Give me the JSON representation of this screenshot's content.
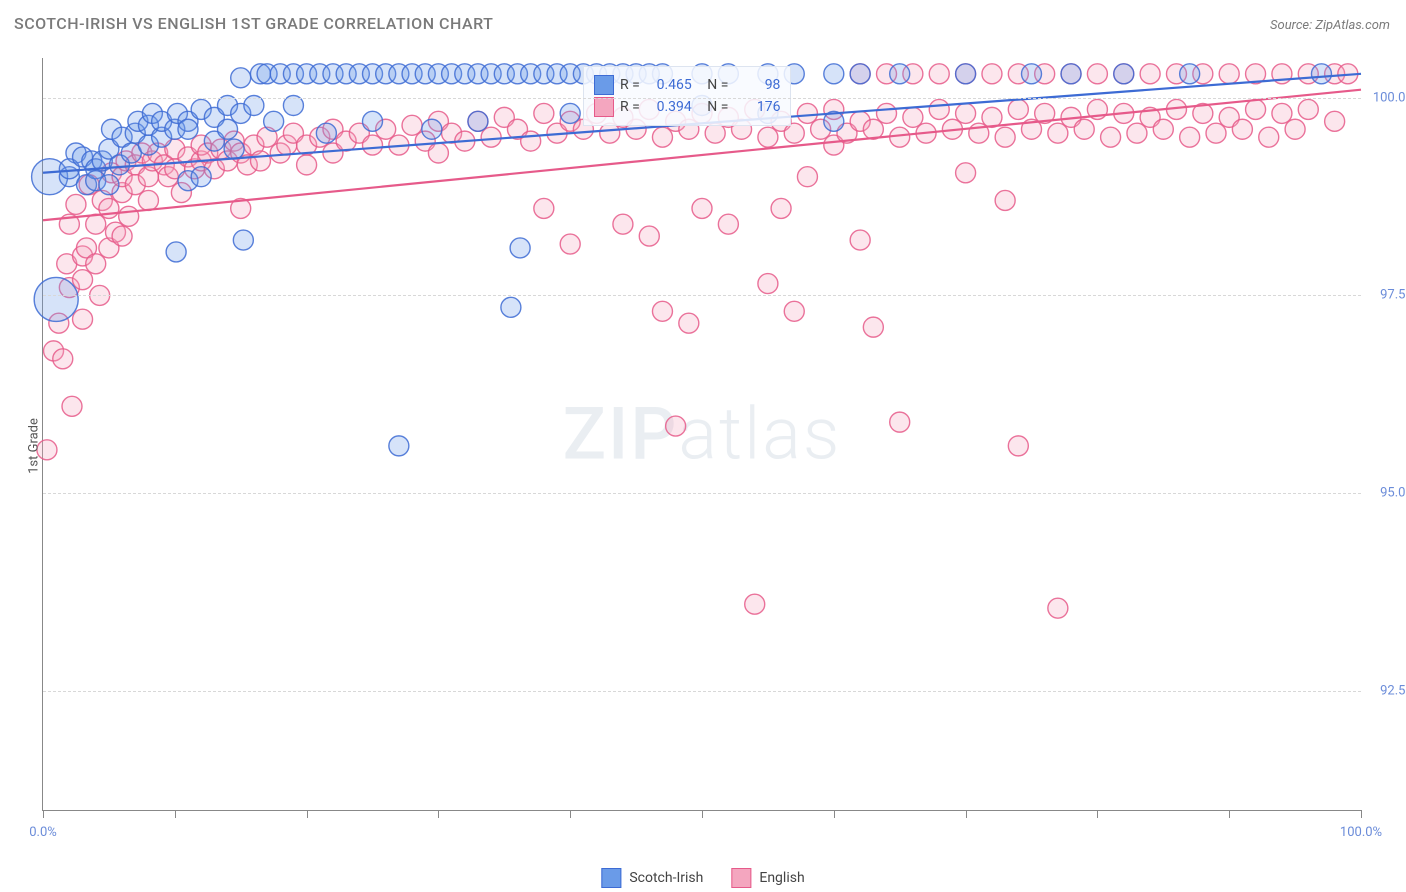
{
  "title": "SCOTCH-IRISH VS ENGLISH 1ST GRADE CORRELATION CHART",
  "source": "Source: ZipAtlas.com",
  "ylabel": "1st Grade",
  "watermark_bold": "ZIP",
  "watermark_rest": "atlas",
  "chart": {
    "type": "scatter",
    "background_color": "#ffffff",
    "grid_color": "#d8d8d8",
    "border_color": "#888888",
    "title_color": "#7a7a7a",
    "title_fontsize": 16,
    "label_fontsize": 13,
    "tick_label_color": "#6b8cd9",
    "xlim": [
      0,
      100
    ],
    "ylim": [
      91.0,
      100.5
    ],
    "x_ticks_major": [
      0,
      50,
      100
    ],
    "x_ticks_minor": [
      10,
      20,
      30,
      40,
      60,
      70,
      80,
      90
    ],
    "x_tick_labels": {
      "0": "0.0%",
      "100": "100.0%"
    },
    "y_ticks": [
      92.5,
      95.0,
      97.5,
      100.0
    ],
    "y_tick_labels": {
      "92.5": "92.5%",
      "95.0": "95.0%",
      "97.5": "97.5%",
      "100.0": "100.0%"
    },
    "default_radius": 10,
    "marker_fill_opacity": 0.28,
    "marker_stroke_opacity": 0.85,
    "marker_stroke_width": 1.4,
    "trend_line_width": 2.2
  },
  "series": {
    "scotch_irish": {
      "label": "Scotch-Irish",
      "color": "#6a9be8",
      "stroke": "#3d6bd4",
      "R": "0.465",
      "N": "98",
      "trend": {
        "x1": 0,
        "y1": 99.05,
        "x2": 100,
        "y2": 100.3
      },
      "points": [
        {
          "x": 1,
          "y": 97.45,
          "r": 22
        },
        {
          "x": 0.5,
          "y": 99.0,
          "r": 18
        },
        {
          "x": 2,
          "y": 99.0
        },
        {
          "x": 2.5,
          "y": 99.3
        },
        {
          "x": 2,
          "y": 99.1
        },
        {
          "x": 3,
          "y": 99.25
        },
        {
          "x": 3.3,
          "y": 98.9
        },
        {
          "x": 3.7,
          "y": 99.2
        },
        {
          "x": 4,
          "y": 99.1
        },
        {
          "x": 4,
          "y": 98.95
        },
        {
          "x": 4.5,
          "y": 99.2
        },
        {
          "x": 5,
          "y": 98.9
        },
        {
          "x": 5,
          "y": 99.35
        },
        {
          "x": 5.2,
          "y": 99.6
        },
        {
          "x": 5.8,
          "y": 99.15
        },
        {
          "x": 6,
          "y": 99.5
        },
        {
          "x": 6.7,
          "y": 99.3
        },
        {
          "x": 7,
          "y": 99.55
        },
        {
          "x": 7.2,
          "y": 99.7
        },
        {
          "x": 8,
          "y": 99.65
        },
        {
          "x": 8,
          "y": 99.4
        },
        {
          "x": 8.3,
          "y": 99.8
        },
        {
          "x": 9,
          "y": 99.5
        },
        {
          "x": 9,
          "y": 99.7
        },
        {
          "x": 10,
          "y": 99.6
        },
        {
          "x": 10.1,
          "y": 98.05
        },
        {
          "x": 10.2,
          "y": 99.8
        },
        {
          "x": 11,
          "y": 99.7
        },
        {
          "x": 11,
          "y": 99.6
        },
        {
          "x": 11,
          "y": 98.95
        },
        {
          "x": 12,
          "y": 99.0
        },
        {
          "x": 12,
          "y": 99.85
        },
        {
          "x": 13,
          "y": 99.75
        },
        {
          "x": 13,
          "y": 99.45
        },
        {
          "x": 14,
          "y": 99.9
        },
        {
          "x": 14,
          "y": 99.6
        },
        {
          "x": 14.5,
          "y": 99.35
        },
        {
          "x": 15,
          "y": 99.8
        },
        {
          "x": 15,
          "y": 100.25
        },
        {
          "x": 15.2,
          "y": 98.2
        },
        {
          "x": 16,
          "y": 99.9
        },
        {
          "x": 16.5,
          "y": 100.3
        },
        {
          "x": 17,
          "y": 100.3
        },
        {
          "x": 17.5,
          "y": 99.7
        },
        {
          "x": 18,
          "y": 100.3
        },
        {
          "x": 19,
          "y": 99.9
        },
        {
          "x": 19,
          "y": 100.3
        },
        {
          "x": 20,
          "y": 100.3
        },
        {
          "x": 21,
          "y": 100.3
        },
        {
          "x": 21.5,
          "y": 99.55
        },
        {
          "x": 22,
          "y": 100.3
        },
        {
          "x": 23,
          "y": 100.3
        },
        {
          "x": 24,
          "y": 100.3
        },
        {
          "x": 25,
          "y": 100.3
        },
        {
          "x": 25,
          "y": 99.7
        },
        {
          "x": 26,
          "y": 100.3
        },
        {
          "x": 27,
          "y": 100.3
        },
        {
          "x": 27,
          "y": 95.6
        },
        {
          "x": 28,
          "y": 100.3
        },
        {
          "x": 29,
          "y": 100.3
        },
        {
          "x": 29.5,
          "y": 99.6
        },
        {
          "x": 30,
          "y": 100.3
        },
        {
          "x": 31,
          "y": 100.3
        },
        {
          "x": 32,
          "y": 100.3
        },
        {
          "x": 33,
          "y": 100.3
        },
        {
          "x": 33,
          "y": 99.7
        },
        {
          "x": 34,
          "y": 100.3
        },
        {
          "x": 35,
          "y": 100.3
        },
        {
          "x": 35.5,
          "y": 97.35
        },
        {
          "x": 36,
          "y": 100.3
        },
        {
          "x": 36.2,
          "y": 98.1
        },
        {
          "x": 37,
          "y": 100.3
        },
        {
          "x": 38,
          "y": 100.3
        },
        {
          "x": 39,
          "y": 100.3
        },
        {
          "x": 40,
          "y": 100.3
        },
        {
          "x": 40,
          "y": 99.8
        },
        {
          "x": 41,
          "y": 100.3
        },
        {
          "x": 42,
          "y": 100.3
        },
        {
          "x": 43,
          "y": 100.3
        },
        {
          "x": 44,
          "y": 100.3
        },
        {
          "x": 45,
          "y": 100.3
        },
        {
          "x": 46,
          "y": 100.3
        },
        {
          "x": 47,
          "y": 100.3
        },
        {
          "x": 50,
          "y": 100.3
        },
        {
          "x": 50,
          "y": 99.9
        },
        {
          "x": 52,
          "y": 100.3
        },
        {
          "x": 55,
          "y": 100.3
        },
        {
          "x": 55,
          "y": 99.8
        },
        {
          "x": 57,
          "y": 100.3
        },
        {
          "x": 60,
          "y": 100.3
        },
        {
          "x": 60,
          "y": 99.7
        },
        {
          "x": 62,
          "y": 100.3
        },
        {
          "x": 65,
          "y": 100.3
        },
        {
          "x": 70,
          "y": 100.3
        },
        {
          "x": 75,
          "y": 100.3
        },
        {
          "x": 78,
          "y": 100.3
        },
        {
          "x": 82,
          "y": 100.3
        },
        {
          "x": 87,
          "y": 100.3
        },
        {
          "x": 97,
          "y": 100.3
        }
      ]
    },
    "english": {
      "label": "English",
      "color": "#f4a6bf",
      "stroke": "#e65a8a",
      "R": "0.394",
      "N": "176",
      "trend": {
        "x1": 0,
        "y1": 98.45,
        "x2": 100,
        "y2": 100.1
      },
      "points": [
        {
          "x": 0.3,
          "y": 95.55
        },
        {
          "x": 0.8,
          "y": 96.8
        },
        {
          "x": 1.2,
          "y": 97.15
        },
        {
          "x": 1.5,
          "y": 96.7
        },
        {
          "x": 1.8,
          "y": 97.9
        },
        {
          "x": 2,
          "y": 97.6
        },
        {
          "x": 2,
          "y": 98.4
        },
        {
          "x": 2.2,
          "y": 96.1
        },
        {
          "x": 2.5,
          "y": 98.65
        },
        {
          "x": 3,
          "y": 98.0
        },
        {
          "x": 3,
          "y": 97.2
        },
        {
          "x": 3,
          "y": 97.7
        },
        {
          "x": 3.3,
          "y": 98.1
        },
        {
          "x": 3.5,
          "y": 98.9
        },
        {
          "x": 4,
          "y": 97.9
        },
        {
          "x": 4,
          "y": 98.4
        },
        {
          "x": 4.3,
          "y": 97.5
        },
        {
          "x": 4.5,
          "y": 98.7
        },
        {
          "x": 5,
          "y": 98.1
        },
        {
          "x": 5,
          "y": 98.6
        },
        {
          "x": 5.2,
          "y": 99.05
        },
        {
          "x": 5.5,
          "y": 98.3
        },
        {
          "x": 6,
          "y": 98.25
        },
        {
          "x": 6,
          "y": 98.8
        },
        {
          "x": 6,
          "y": 99.0
        },
        {
          "x": 6.3,
          "y": 99.2
        },
        {
          "x": 6.5,
          "y": 98.5
        },
        {
          "x": 7,
          "y": 98.9
        },
        {
          "x": 7,
          "y": 99.15
        },
        {
          "x": 7.5,
          "y": 99.3
        },
        {
          "x": 8,
          "y": 99.0
        },
        {
          "x": 8,
          "y": 98.7
        },
        {
          "x": 8.3,
          "y": 99.2
        },
        {
          "x": 8.7,
          "y": 99.3
        },
        {
          "x": 9.2,
          "y": 99.15
        },
        {
          "x": 9.5,
          "y": 99.0
        },
        {
          "x": 10,
          "y": 99.1
        },
        {
          "x": 10,
          "y": 99.35
        },
        {
          "x": 10.5,
          "y": 98.8
        },
        {
          "x": 11,
          "y": 99.25
        },
        {
          "x": 11.5,
          "y": 99.1
        },
        {
          "x": 12,
          "y": 99.2
        },
        {
          "x": 12,
          "y": 99.4
        },
        {
          "x": 12.5,
          "y": 99.3
        },
        {
          "x": 13,
          "y": 99.1
        },
        {
          "x": 13.5,
          "y": 99.35
        },
        {
          "x": 14,
          "y": 99.2
        },
        {
          "x": 14.5,
          "y": 99.45
        },
        {
          "x": 15,
          "y": 99.3
        },
        {
          "x": 15,
          "y": 98.6
        },
        {
          "x": 15.5,
          "y": 99.15
        },
        {
          "x": 16,
          "y": 99.4
        },
        {
          "x": 16.5,
          "y": 99.2
        },
        {
          "x": 17,
          "y": 99.5
        },
        {
          "x": 18,
          "y": 99.3
        },
        {
          "x": 18.5,
          "y": 99.4
        },
        {
          "x": 19,
          "y": 99.55
        },
        {
          "x": 20,
          "y": 99.4
        },
        {
          "x": 20,
          "y": 99.15
        },
        {
          "x": 21,
          "y": 99.5
        },
        {
          "x": 22,
          "y": 99.3
        },
        {
          "x": 22,
          "y": 99.6
        },
        {
          "x": 23,
          "y": 99.45
        },
        {
          "x": 24,
          "y": 99.55
        },
        {
          "x": 25,
          "y": 99.4
        },
        {
          "x": 26,
          "y": 99.6
        },
        {
          "x": 27,
          "y": 99.4
        },
        {
          "x": 28,
          "y": 99.65
        },
        {
          "x": 29,
          "y": 99.45
        },
        {
          "x": 30,
          "y": 99.7
        },
        {
          "x": 30,
          "y": 99.3
        },
        {
          "x": 31,
          "y": 99.55
        },
        {
          "x": 32,
          "y": 99.45
        },
        {
          "x": 33,
          "y": 99.7
        },
        {
          "x": 34,
          "y": 99.5
        },
        {
          "x": 35,
          "y": 99.75
        },
        {
          "x": 36,
          "y": 99.6
        },
        {
          "x": 37,
          "y": 99.45
        },
        {
          "x": 38,
          "y": 99.8
        },
        {
          "x": 38,
          "y": 98.6
        },
        {
          "x": 39,
          "y": 99.55
        },
        {
          "x": 40,
          "y": 99.7
        },
        {
          "x": 40,
          "y": 98.15
        },
        {
          "x": 41,
          "y": 99.6
        },
        {
          "x": 42,
          "y": 99.8
        },
        {
          "x": 43,
          "y": 99.55
        },
        {
          "x": 44,
          "y": 99.75
        },
        {
          "x": 44,
          "y": 98.4
        },
        {
          "x": 45,
          "y": 99.6
        },
        {
          "x": 46,
          "y": 98.25
        },
        {
          "x": 46,
          "y": 99.85
        },
        {
          "x": 47,
          "y": 99.5
        },
        {
          "x": 47,
          "y": 97.3
        },
        {
          "x": 48,
          "y": 99.7
        },
        {
          "x": 48,
          "y": 95.85
        },
        {
          "x": 49,
          "y": 99.6
        },
        {
          "x": 49,
          "y": 97.15
        },
        {
          "x": 50,
          "y": 99.8
        },
        {
          "x": 50,
          "y": 98.6
        },
        {
          "x": 51,
          "y": 99.55
        },
        {
          "x": 52,
          "y": 99.75
        },
        {
          "x": 52,
          "y": 98.4
        },
        {
          "x": 53,
          "y": 99.6
        },
        {
          "x": 54,
          "y": 93.6
        },
        {
          "x": 54,
          "y": 99.85
        },
        {
          "x": 55,
          "y": 99.5
        },
        {
          "x": 55,
          "y": 97.65
        },
        {
          "x": 56,
          "y": 99.7
        },
        {
          "x": 56,
          "y": 98.6
        },
        {
          "x": 57,
          "y": 99.55
        },
        {
          "x": 57,
          "y": 97.3
        },
        {
          "x": 58,
          "y": 99.8
        },
        {
          "x": 58,
          "y": 99.0
        },
        {
          "x": 59,
          "y": 99.6
        },
        {
          "x": 60,
          "y": 99.85
        },
        {
          "x": 60,
          "y": 99.4
        },
        {
          "x": 61,
          "y": 99.55
        },
        {
          "x": 62,
          "y": 99.7
        },
        {
          "x": 62,
          "y": 98.2
        },
        {
          "x": 62,
          "y": 100.3
        },
        {
          "x": 63,
          "y": 99.6
        },
        {
          "x": 63,
          "y": 97.1
        },
        {
          "x": 64,
          "y": 99.8
        },
        {
          "x": 64,
          "y": 100.3
        },
        {
          "x": 65,
          "y": 99.5
        },
        {
          "x": 65,
          "y": 95.9
        },
        {
          "x": 66,
          "y": 99.75
        },
        {
          "x": 66,
          "y": 100.3
        },
        {
          "x": 67,
          "y": 99.55
        },
        {
          "x": 68,
          "y": 99.85
        },
        {
          "x": 68,
          "y": 100.3
        },
        {
          "x": 69,
          "y": 99.6
        },
        {
          "x": 70,
          "y": 99.8
        },
        {
          "x": 70,
          "y": 100.3
        },
        {
          "x": 70,
          "y": 99.05
        },
        {
          "x": 71,
          "y": 99.55
        },
        {
          "x": 72,
          "y": 99.75
        },
        {
          "x": 72,
          "y": 100.3
        },
        {
          "x": 73,
          "y": 99.5
        },
        {
          "x": 73,
          "y": 98.7
        },
        {
          "x": 74,
          "y": 99.85
        },
        {
          "x": 74,
          "y": 95.6
        },
        {
          "x": 74,
          "y": 100.3
        },
        {
          "x": 75,
          "y": 99.6
        },
        {
          "x": 76,
          "y": 99.8
        },
        {
          "x": 76,
          "y": 100.3
        },
        {
          "x": 77,
          "y": 99.55
        },
        {
          "x": 77,
          "y": 93.55
        },
        {
          "x": 78,
          "y": 99.75
        },
        {
          "x": 78,
          "y": 100.3
        },
        {
          "x": 79,
          "y": 99.6
        },
        {
          "x": 80,
          "y": 99.85
        },
        {
          "x": 80,
          "y": 100.3
        },
        {
          "x": 81,
          "y": 99.5
        },
        {
          "x": 82,
          "y": 99.8
        },
        {
          "x": 82,
          "y": 100.3
        },
        {
          "x": 83,
          "y": 99.55
        },
        {
          "x": 84,
          "y": 99.75
        },
        {
          "x": 84,
          "y": 100.3
        },
        {
          "x": 85,
          "y": 99.6
        },
        {
          "x": 86,
          "y": 99.85
        },
        {
          "x": 86,
          "y": 100.3
        },
        {
          "x": 87,
          "y": 99.5
        },
        {
          "x": 88,
          "y": 99.8
        },
        {
          "x": 88,
          "y": 100.3
        },
        {
          "x": 89,
          "y": 99.55
        },
        {
          "x": 90,
          "y": 99.75
        },
        {
          "x": 90,
          "y": 100.3
        },
        {
          "x": 91,
          "y": 99.6
        },
        {
          "x": 92,
          "y": 99.85
        },
        {
          "x": 92,
          "y": 100.3
        },
        {
          "x": 93,
          "y": 99.5
        },
        {
          "x": 94,
          "y": 99.8
        },
        {
          "x": 94,
          "y": 100.3
        },
        {
          "x": 95,
          "y": 99.6
        },
        {
          "x": 96,
          "y": 99.85
        },
        {
          "x": 96,
          "y": 100.3
        },
        {
          "x": 98,
          "y": 99.7
        },
        {
          "x": 98,
          "y": 100.3
        },
        {
          "x": 99,
          "y": 100.3
        }
      ]
    }
  },
  "legend_top": {
    "r_label": "R =",
    "n_label": "N ="
  }
}
